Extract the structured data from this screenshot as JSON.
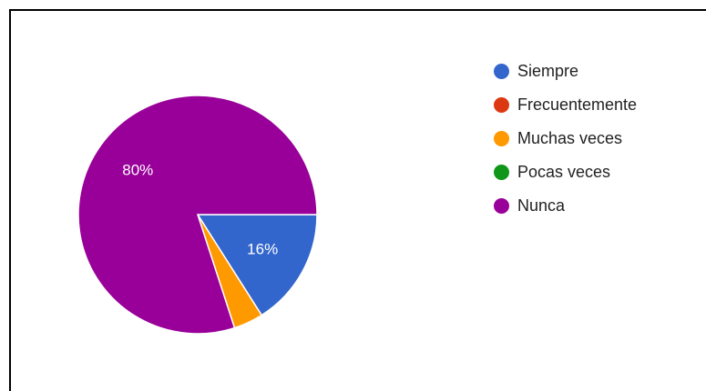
{
  "chart_data": {
    "type": "pie",
    "title": "",
    "legend_position": "right",
    "slices": [
      {
        "name": "Siempre",
        "value": 16,
        "color": "#3366cc",
        "label": "16%"
      },
      {
        "name": "Frecuentemente",
        "value": 0,
        "color": "#dc3912",
        "label": ""
      },
      {
        "name": "Muchas veces",
        "value": 4,
        "color": "#ff9900",
        "label": ""
      },
      {
        "name": "Pocas veces",
        "value": 0,
        "color": "#109618",
        "label": ""
      },
      {
        "name": "Nunca",
        "value": 80,
        "color": "#990099",
        "label": "80%"
      }
    ]
  }
}
